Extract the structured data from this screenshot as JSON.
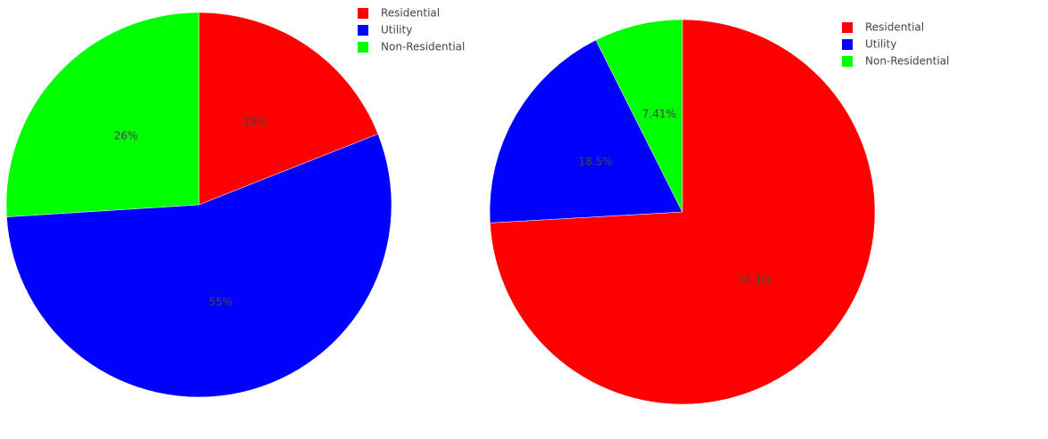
{
  "chart_data": [
    {
      "type": "pie",
      "categories": [
        "Residential",
        "Utility",
        "Non-Residential"
      ],
      "values": [
        19,
        55,
        26
      ],
      "value_labels": [
        "19%",
        "55%",
        "26%"
      ],
      "colors": [
        "#ff0000",
        "#0000ff",
        "#00ff00"
      ]
    },
    {
      "type": "pie",
      "categories": [
        "Residential",
        "Utility",
        "Non-Residential"
      ],
      "values": [
        74.1,
        18.5,
        7.41
      ],
      "value_labels": [
        "74.1%",
        "18.5%",
        "7.41%"
      ],
      "colors": [
        "#ff0000",
        "#0000ff",
        "#00ff00"
      ]
    }
  ]
}
